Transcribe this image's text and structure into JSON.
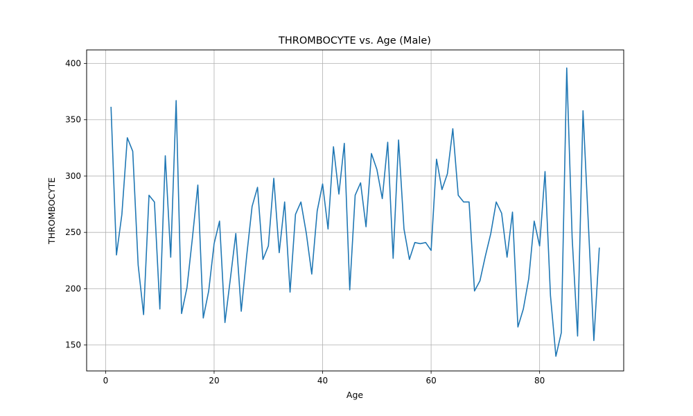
{
  "chart_data": {
    "type": "line",
    "title": "THROMBOCYTE vs. Age (Male)",
    "xlabel": "Age",
    "ylabel": "THROMBOCYTE",
    "xlim": [
      -3.5,
      95.5
    ],
    "ylim": [
      127,
      412
    ],
    "xticks": [
      0,
      20,
      40,
      60,
      80
    ],
    "yticks": [
      150,
      200,
      250,
      300,
      350,
      400
    ],
    "grid": true,
    "line_color": "#1f77b4",
    "series": [
      {
        "x": [
          1,
          2,
          3,
          4,
          5,
          6,
          7,
          8,
          9,
          10,
          11,
          12,
          13,
          14,
          15,
          16,
          17,
          18,
          19,
          20,
          21,
          22,
          23,
          24,
          25,
          26,
          27,
          28,
          29,
          30,
          31,
          32,
          33,
          34,
          35,
          36,
          37,
          38,
          39,
          40,
          41,
          42,
          43,
          44,
          45,
          46,
          47,
          48,
          49,
          50,
          51,
          52,
          53,
          54,
          55,
          56,
          57,
          58,
          59,
          60,
          61,
          62,
          63,
          64,
          65,
          66,
          67,
          68,
          69,
          70,
          71,
          72,
          73,
          74,
          75,
          76,
          77,
          78,
          79,
          80,
          81,
          82,
          83,
          84,
          85,
          86,
          87,
          88,
          89,
          90,
          91
        ],
        "y": [
          361,
          230,
          266,
          334,
          322,
          221,
          177,
          283,
          277,
          182,
          318,
          228,
          367,
          178,
          201,
          245,
          292,
          174,
          198,
          240,
          260,
          170,
          209,
          249,
          180,
          229,
          273,
          290,
          226,
          238,
          298,
          232,
          277,
          197,
          266,
          277,
          249,
          213,
          269,
          293,
          253,
          326,
          284,
          329,
          199,
          283,
          294,
          255,
          320,
          306,
          280,
          330,
          227,
          332,
          253,
          226,
          241,
          240,
          241,
          234,
          315,
          288,
          302,
          342,
          283,
          277,
          277,
          198,
          207,
          229,
          249,
          277,
          267,
          228,
          268,
          166,
          182,
          209,
          260,
          238,
          304,
          194,
          140,
          161,
          396,
          245,
          158,
          358,
          256,
          154,
          236
        ]
      }
    ]
  }
}
